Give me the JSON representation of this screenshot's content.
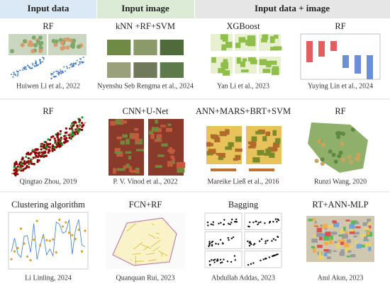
{
  "header": {
    "columns": [
      "Input data",
      "Input image",
      "Input data + image"
    ]
  },
  "cells": [
    [
      {
        "method": "RF",
        "citation": "Huiwen Li et al., 2022"
      },
      {
        "method": "kNN +RF+SVM",
        "citation": "Nyenshu Seb Rengma et al., 2024"
      },
      {
        "method": "XGBoost",
        "citation": "Yan Li et al., 2023"
      },
      {
        "method": "RF",
        "citation": "Yuying Lin et al., 2024"
      }
    ],
    [
      {
        "method": "RF",
        "citation": "Qingtao Zhou, 2019"
      },
      {
        "method": "CNN+U-Net",
        "citation": "P. V. Vinod et al., 2022"
      },
      {
        "method": "ANN+MARS+BRT+SVM",
        "citation": "Mareike Ließ et al., 2016"
      },
      {
        "method": "RF",
        "citation": "Runzi Wang, 2020"
      }
    ],
    [
      {
        "method": "Clustering algorithm",
        "citation": "Li Linling, 2024"
      },
      {
        "method": "FCN+RF",
        "citation": "Quanquan Rui, 2023"
      },
      {
        "method": "Bagging",
        "citation": "Abdullah Addas, 2023"
      },
      {
        "method": "RT+ANN-MLP",
        "citation": "Anıl Akın, 2023"
      }
    ]
  ]
}
